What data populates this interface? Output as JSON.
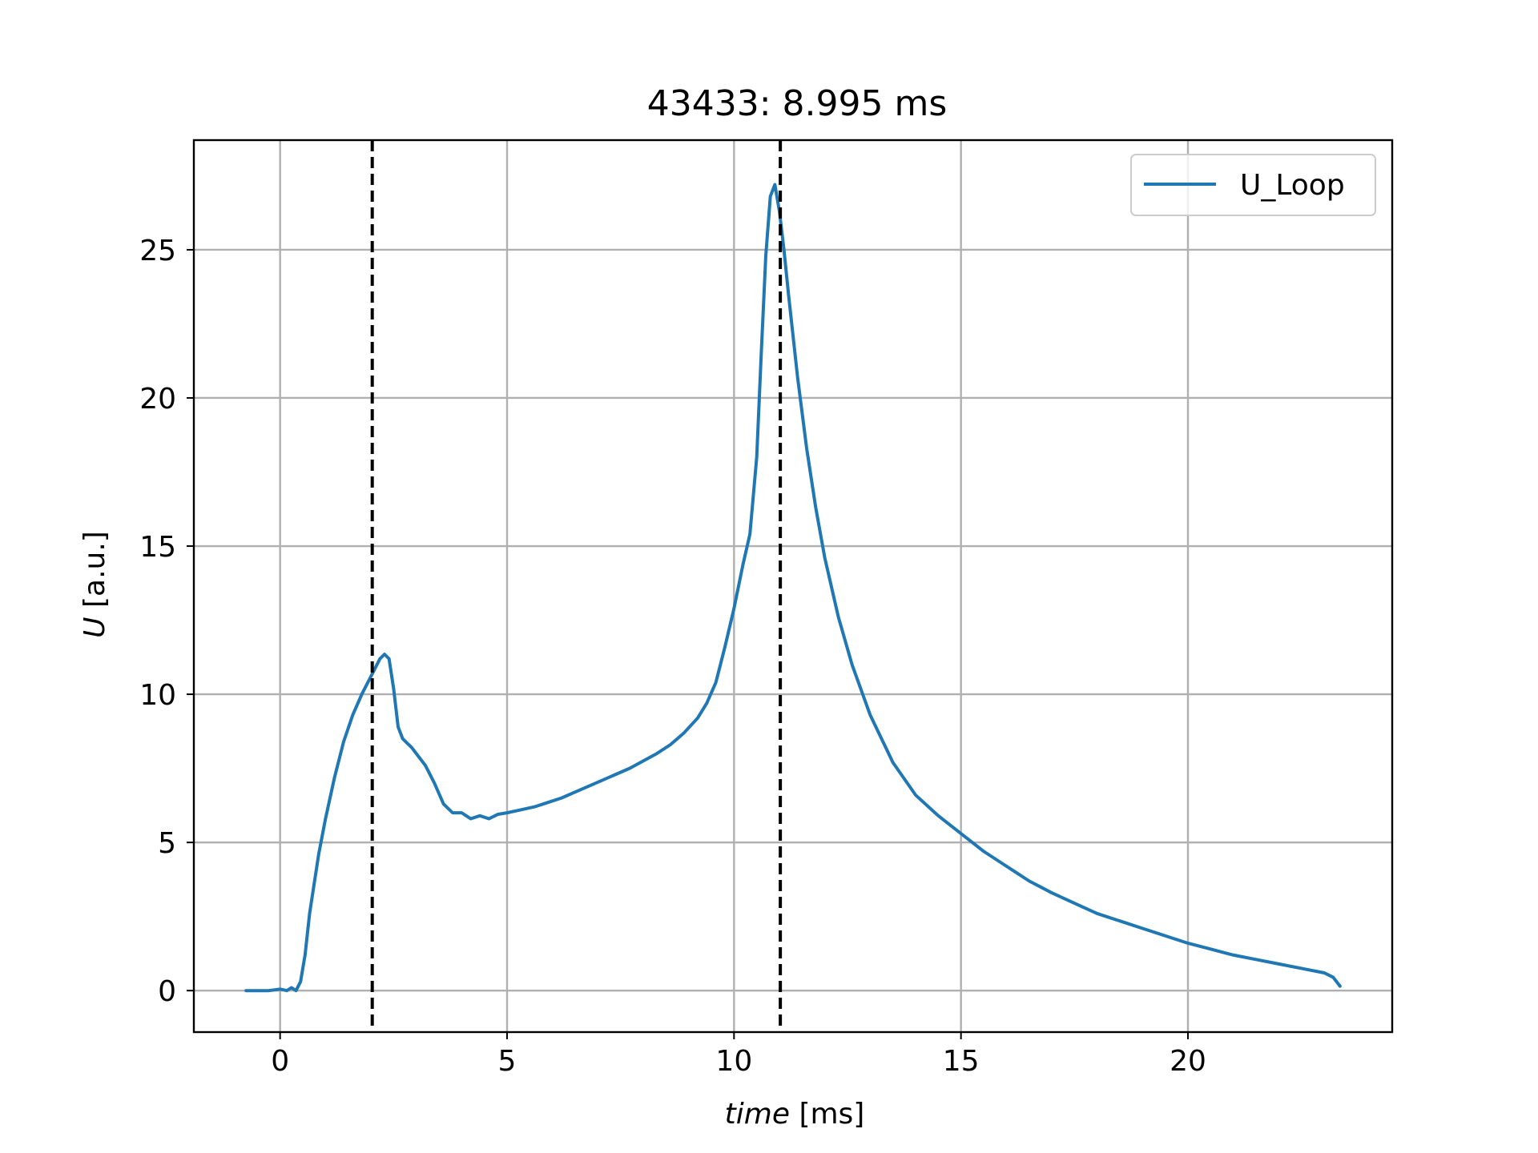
{
  "chart_data": {
    "type": "line",
    "title": "43433: 8.995 ms",
    "xlabel_italic": "time",
    "xlabel_unit": "[ms]",
    "ylabel_italic": "U",
    "ylabel_unit": "[a.u.]",
    "xlim": [
      -1.9,
      24.5
    ],
    "ylim": [
      -1.4,
      28.7
    ],
    "xticks": [
      0,
      5,
      10,
      15,
      20
    ],
    "yticks": [
      0,
      5,
      10,
      15,
      20,
      25
    ],
    "grid": true,
    "legend_position": "upper right",
    "vlines": [
      2.03,
      11.02
    ],
    "vline_style": "dashed",
    "vline_color": "#000000",
    "series": [
      {
        "name": "U_Loop",
        "color": "#1f77b4",
        "x": [
          -0.75,
          -0.5,
          -0.25,
          0.0,
          0.15,
          0.25,
          0.35,
          0.45,
          0.55,
          0.65,
          0.75,
          0.85,
          1.0,
          1.2,
          1.4,
          1.6,
          1.8,
          2.0,
          2.1,
          2.2,
          2.3,
          2.4,
          2.5,
          2.6,
          2.7,
          2.8,
          2.9,
          3.0,
          3.2,
          3.4,
          3.6,
          3.8,
          4.0,
          4.2,
          4.4,
          4.6,
          4.8,
          5.0,
          5.3,
          5.6,
          5.9,
          6.2,
          6.5,
          6.8,
          7.1,
          7.4,
          7.7,
          8.0,
          8.3,
          8.6,
          8.9,
          9.2,
          9.4,
          9.6,
          9.8,
          10.0,
          10.2,
          10.35,
          10.5,
          10.6,
          10.7,
          10.8,
          10.9,
          11.0,
          11.1,
          11.2,
          11.4,
          11.6,
          11.8,
          12.0,
          12.3,
          12.6,
          13.0,
          13.5,
          14.0,
          14.5,
          15.0,
          15.5,
          16.0,
          16.5,
          17.0,
          17.5,
          18.0,
          18.5,
          19.0,
          19.5,
          20.0,
          20.5,
          21.0,
          21.5,
          22.0,
          22.5,
          23.0,
          23.2,
          23.35
        ],
        "y": [
          0.0,
          0.0,
          0.0,
          0.05,
          0.0,
          0.1,
          0.0,
          0.3,
          1.2,
          2.6,
          3.6,
          4.6,
          5.8,
          7.2,
          8.4,
          9.3,
          10.0,
          10.6,
          10.9,
          11.2,
          11.35,
          11.2,
          10.2,
          8.9,
          8.5,
          8.35,
          8.2,
          8.0,
          7.6,
          7.0,
          6.3,
          6.0,
          6.0,
          5.8,
          5.9,
          5.8,
          5.95,
          6.0,
          6.1,
          6.2,
          6.35,
          6.5,
          6.7,
          6.9,
          7.1,
          7.3,
          7.5,
          7.75,
          8.0,
          8.3,
          8.7,
          9.2,
          9.7,
          10.4,
          11.6,
          12.9,
          14.4,
          15.4,
          18.0,
          21.5,
          24.8,
          26.8,
          27.2,
          26.3,
          25.0,
          23.5,
          20.7,
          18.3,
          16.3,
          14.6,
          12.6,
          11.0,
          9.3,
          7.7,
          6.6,
          5.9,
          5.3,
          4.7,
          4.2,
          3.7,
          3.3,
          2.95,
          2.6,
          2.35,
          2.1,
          1.85,
          1.6,
          1.4,
          1.2,
          1.05,
          0.9,
          0.75,
          0.6,
          0.45,
          0.15
        ]
      }
    ]
  }
}
